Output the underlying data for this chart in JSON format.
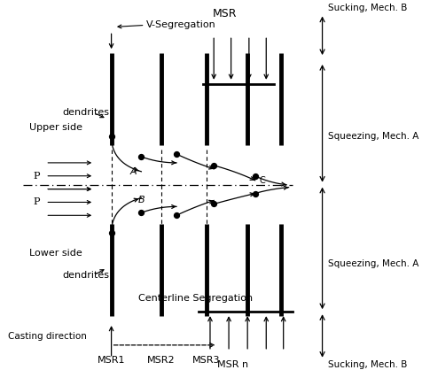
{
  "background_color": "#ffffff",
  "right_labels": {
    "sucking_top": "Sucking, Mech. B",
    "squeezing_upper": "Squeezing, Mech. A",
    "squeezing_lower": "Squeezing, Mech. A",
    "sucking_bottom": "Sucking, Mech. B"
  },
  "msr_label": "MSR",
  "msrn_label": "MSR n",
  "centerline_seg_label": "Centerline Segregation",
  "v_seg_label": "V-Segregation",
  "dendrites_upper_label": "dendrites",
  "dendrites_lower_label": "dendrites",
  "upper_side_label": "Upper side",
  "lower_side_label": "Lower side",
  "casting_direction_label": "Casting direction",
  "P_label": "P",
  "A_label": "A",
  "B_label": "B",
  "C_label": "C",
  "msr_labels": [
    "MSR1",
    "MSR2",
    "MSR3"
  ]
}
